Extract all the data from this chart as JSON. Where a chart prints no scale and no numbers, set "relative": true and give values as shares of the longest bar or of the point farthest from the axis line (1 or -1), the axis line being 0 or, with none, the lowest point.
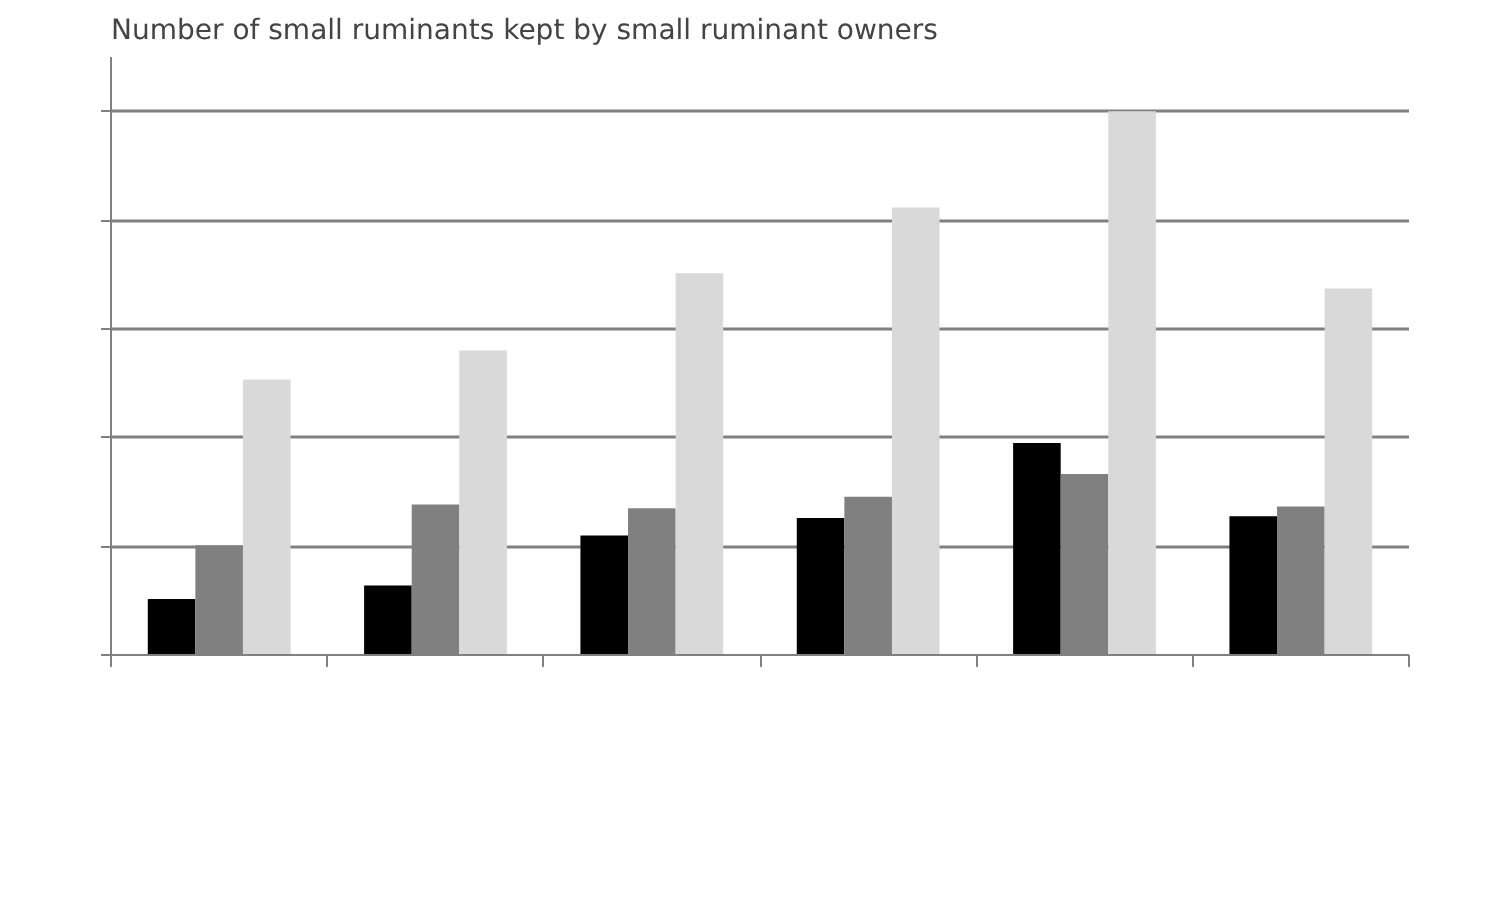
{
  "chart_data": {
    "type": "bar",
    "title": "Number of small ruminants kept by small ruminant owners",
    "relative": true,
    "categories": [
      null,
      null,
      null,
      null,
      null,
      null
    ],
    "series": [
      {
        "color": "#000000",
        "values": [
          0.103,
          0.128,
          0.22,
          0.252,
          0.39,
          0.255
        ]
      },
      {
        "color": "#808080",
        "values": [
          0.202,
          0.277,
          0.27,
          0.291,
          0.333,
          0.273
        ]
      },
      {
        "color": "#d9d9d9",
        "values": [
          0.507,
          0.56,
          0.702,
          0.823,
          1,
          0.674
        ]
      }
    ],
    "grid": "y"
  }
}
